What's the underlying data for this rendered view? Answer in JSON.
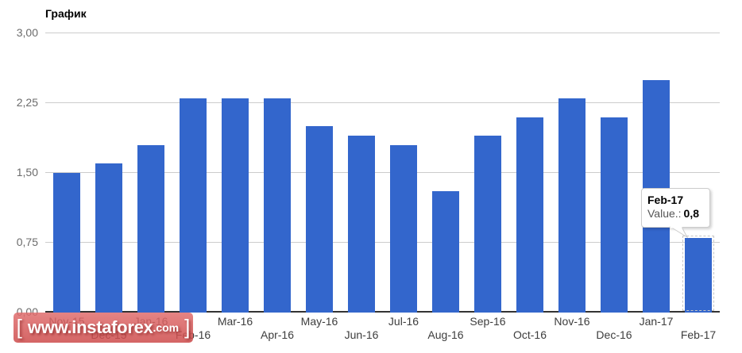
{
  "chart_data": {
    "type": "bar",
    "title": "График",
    "categories": [
      "Nov-15",
      "Dec-15",
      "Jan-16",
      "Feb-16",
      "Mar-16",
      "Apr-16",
      "May-16",
      "Jun-16",
      "Jul-16",
      "Aug-16",
      "Sep-16",
      "Oct-16",
      "Nov-16",
      "Dec-16",
      "Jan-17",
      "Feb-17"
    ],
    "values": [
      1.5,
      1.6,
      1.8,
      2.3,
      2.3,
      2.3,
      2.0,
      1.9,
      1.8,
      1.3,
      1.9,
      2.1,
      2.3,
      2.1,
      2.5,
      0.8
    ],
    "title_position": "top-left",
    "xlabel": "",
    "ylabel": "",
    "ylim": [
      0,
      3
    ],
    "ytick_labels": [
      "0,00",
      "0,75",
      "1,50",
      "2,25",
      "3,00"
    ],
    "grid": true,
    "legend": "none",
    "bar_color": "#3366cc",
    "highlighted_category": "Feb-17"
  },
  "tooltip": {
    "label": "Feb-17",
    "value_label": "Value.:",
    "value": "0,8"
  },
  "watermark": {
    "open_bracket": "[",
    "domain": "www.instaforex",
    "tld": ".com",
    "close_bracket": "]"
  },
  "colors": {
    "bar": "#3366cc",
    "grid": "#cccccc",
    "axis": "#333333",
    "y_tick_text": "#6b6b6b",
    "x_tick_text": "#3d3d3d",
    "watermark_bg": "#d45c5c",
    "tooltip_border": "#cccccc"
  }
}
